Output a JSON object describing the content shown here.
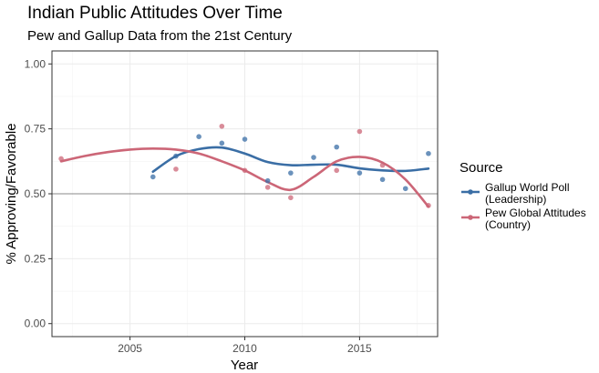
{
  "chart_data": {
    "type": "scatter",
    "title": "Indian Public Attitudes Over Time",
    "subtitle": "Pew and Gallup Data from the 21st Century",
    "xlabel": "Year",
    "ylabel": "% Approving/Favorable",
    "xlim": [
      2001.6,
      2018.4
    ],
    "ylim": [
      -0.05,
      1.05
    ],
    "x_ticks": [
      2005,
      2010,
      2015
    ],
    "x_tick_labels": [
      "2005",
      "2010",
      "2015"
    ],
    "y_ticks": [
      0.0,
      0.25,
      0.5,
      0.75,
      1.0
    ],
    "y_tick_labels": [
      "0.00",
      "0.25",
      "0.50",
      "0.75",
      "1.00"
    ],
    "reference_line_y": 0.5,
    "grid": true,
    "legend": {
      "title": "Source",
      "placement": "right"
    },
    "series": [
      {
        "name": "Gallup World Poll\n(Leadership)",
        "label_lines": [
          "Gallup World Poll",
          "(Leadership)"
        ],
        "color": "#3a6ea5",
        "points": [
          [
            2006,
            0.565
          ],
          [
            2007,
            0.645
          ],
          [
            2008,
            0.72
          ],
          [
            2009,
            0.695
          ],
          [
            2010,
            0.71
          ],
          [
            2011,
            0.55
          ],
          [
            2012,
            0.58
          ],
          [
            2013,
            0.64
          ],
          [
            2014,
            0.68
          ],
          [
            2015,
            0.58
          ],
          [
            2016,
            0.555
          ],
          [
            2017,
            0.52
          ],
          [
            2018,
            0.655
          ]
        ],
        "smooth": [
          [
            2006,
            0.585
          ],
          [
            2007,
            0.645
          ],
          [
            2008,
            0.672
          ],
          [
            2009,
            0.678
          ],
          [
            2010,
            0.655
          ],
          [
            2011,
            0.622
          ],
          [
            2012,
            0.61
          ],
          [
            2013,
            0.612
          ],
          [
            2014,
            0.612
          ],
          [
            2015,
            0.598
          ],
          [
            2016,
            0.59
          ],
          [
            2017,
            0.588
          ],
          [
            2018,
            0.597
          ]
        ]
      },
      {
        "name": "Pew Global Attitudes\n(Country)",
        "label_lines": [
          "Pew Global Attitudes",
          "(Country)"
        ],
        "color": "#cc6677",
        "points": [
          [
            2002,
            0.635
          ],
          [
            2007,
            0.595
          ],
          [
            2009,
            0.76
          ],
          [
            2010,
            0.59
          ],
          [
            2011,
            0.525
          ],
          [
            2012,
            0.485
          ],
          [
            2014,
            0.59
          ],
          [
            2015,
            0.74
          ],
          [
            2016,
            0.61
          ],
          [
            2018,
            0.455
          ]
        ],
        "smooth": [
          [
            2002,
            0.625
          ],
          [
            2003,
            0.645
          ],
          [
            2004,
            0.66
          ],
          [
            2005,
            0.67
          ],
          [
            2006,
            0.674
          ],
          [
            2007,
            0.67
          ],
          [
            2008,
            0.655
          ],
          [
            2009,
            0.625
          ],
          [
            2010,
            0.59
          ],
          [
            2011,
            0.545
          ],
          [
            2012,
            0.515
          ],
          [
            2013,
            0.565
          ],
          [
            2014,
            0.625
          ],
          [
            2015,
            0.642
          ],
          [
            2016,
            0.62
          ],
          [
            2017,
            0.555
          ],
          [
            2018,
            0.45
          ]
        ]
      }
    ]
  }
}
